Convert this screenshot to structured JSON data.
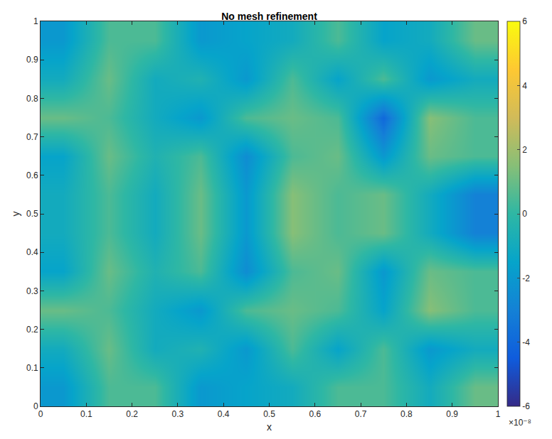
{
  "chart_data": {
    "type": "heatmap",
    "title": "No mesh refinement",
    "x_label": "x",
    "y_label": "y",
    "x": [
      0.05,
      0.15,
      0.25,
      0.35,
      0.45,
      0.55,
      0.65,
      0.75,
      0.85,
      0.95
    ],
    "y": [
      0.05,
      0.15,
      0.25,
      0.35,
      0.45,
      0.55,
      0.65,
      0.75,
      0.85,
      0.95
    ],
    "z": [
      [
        -2,
        0.5,
        0.5,
        -2,
        -1.5,
        -1,
        0.5,
        0.5,
        -1,
        1
      ],
      [
        -1,
        1,
        -1,
        -0.5,
        -2,
        0.5,
        -1.5,
        0.5,
        -2,
        -1
      ],
      [
        1,
        0.5,
        -1,
        -2,
        0.5,
        1,
        0.5,
        -1.5,
        1.5,
        0.5
      ],
      [
        -1.5,
        1,
        -0.5,
        0.5,
        -2.5,
        0.5,
        1,
        -2,
        1,
        0.5
      ],
      [
        -1,
        0.5,
        -1,
        1,
        -2,
        1.5,
        0.5,
        1,
        -1,
        -3
      ],
      [
        -1,
        0.5,
        -1,
        1,
        -2,
        1.5,
        0.5,
        1,
        -1,
        -3
      ],
      [
        -1.5,
        1,
        -0.5,
        0.5,
        -2.5,
        0.5,
        1,
        -2,
        1,
        0.5
      ],
      [
        1,
        0.5,
        -1,
        -2,
        0.5,
        1,
        0.5,
        -4,
        1.5,
        0.5
      ],
      [
        -1,
        1,
        -1,
        -0.5,
        -2,
        0.5,
        -1.5,
        0.5,
        -2,
        -1
      ],
      [
        -2,
        0.5,
        0.5,
        -2,
        -1.5,
        -1,
        0.5,
        -1.5,
        -1,
        1
      ]
    ],
    "xlim": [
      0,
      1
    ],
    "ylim": [
      0,
      1
    ],
    "xticks": [
      0,
      0.1,
      0.2,
      0.3,
      0.4,
      0.5,
      0.6,
      0.7,
      0.8,
      0.9,
      1
    ],
    "yticks": [
      0,
      0.1,
      0.2,
      0.3,
      0.4,
      0.5,
      0.6,
      0.7,
      0.8,
      0.9,
      1
    ],
    "zlim": [
      -6,
      6
    ],
    "zticks": [
      -6,
      -4,
      -2,
      0,
      2,
      4,
      6
    ],
    "colorbar_exponent": "×10⁻⁸",
    "grid": false
  }
}
